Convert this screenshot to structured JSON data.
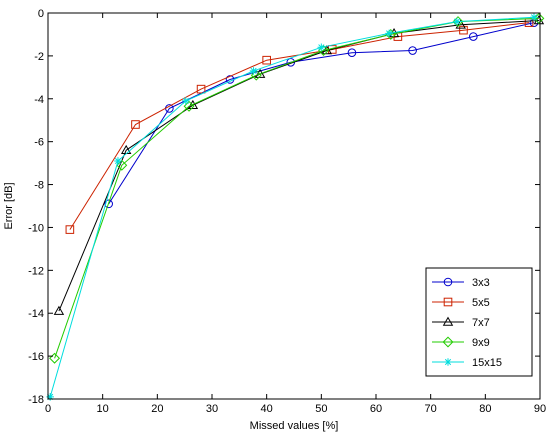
{
  "chart_data": {
    "type": "line",
    "xlabel": "Missed values [%]",
    "ylabel": "Error [dB]",
    "xlim": [
      0,
      90
    ],
    "ylim": [
      -18,
      0
    ],
    "xticks": [
      0,
      10,
      20,
      30,
      40,
      50,
      60,
      70,
      80,
      90
    ],
    "yticks": [
      0,
      -2,
      -4,
      -6,
      -8,
      -10,
      -12,
      -14,
      -16,
      -18
    ],
    "grid": false,
    "legend_position": "bottom-right",
    "series": [
      {
        "name": "3x3",
        "color": "#0000cc",
        "marker": "circle",
        "x": [
          11.1,
          22.2,
          33.3,
          44.4,
          55.6,
          66.7,
          77.8,
          88.9
        ],
        "y": [
          -8.9,
          -4.45,
          -3.1,
          -2.3,
          -1.85,
          -1.75,
          -1.1,
          -0.45
        ]
      },
      {
        "name": "5x5",
        "color": "#cc2200",
        "marker": "square",
        "x": [
          4,
          16,
          28,
          40,
          52,
          64,
          76,
          88
        ],
        "y": [
          -10.1,
          -5.2,
          -3.55,
          -2.2,
          -1.7,
          -1.1,
          -0.8,
          -0.45
        ]
      },
      {
        "name": "7x7",
        "color": "#000000",
        "marker": "triangle",
        "x": [
          2,
          14.3,
          26.5,
          38.8,
          51,
          63.3,
          75.5,
          89.8
        ],
        "y": [
          -13.9,
          -6.4,
          -4.3,
          -2.85,
          -1.75,
          -0.95,
          -0.55,
          -0.35
        ]
      },
      {
        "name": "9x9",
        "color": "#22cc00",
        "marker": "diamond",
        "x": [
          1.2,
          13.5,
          25.8,
          38.1,
          50.4,
          62.7,
          75,
          89.8
        ],
        "y": [
          -16.1,
          -7.1,
          -4.35,
          -2.9,
          -1.75,
          -1.0,
          -0.4,
          -0.25
        ]
      },
      {
        "name": "15x15",
        "color": "#00dddd",
        "marker": "asterisk",
        "x": [
          0.4,
          12.8,
          25.2,
          37.6,
          50,
          62.4,
          74.8,
          88.9
        ],
        "y": [
          -17.9,
          -6.9,
          -4.1,
          -2.7,
          -1.6,
          -0.95,
          -0.4,
          -0.2
        ]
      }
    ]
  }
}
